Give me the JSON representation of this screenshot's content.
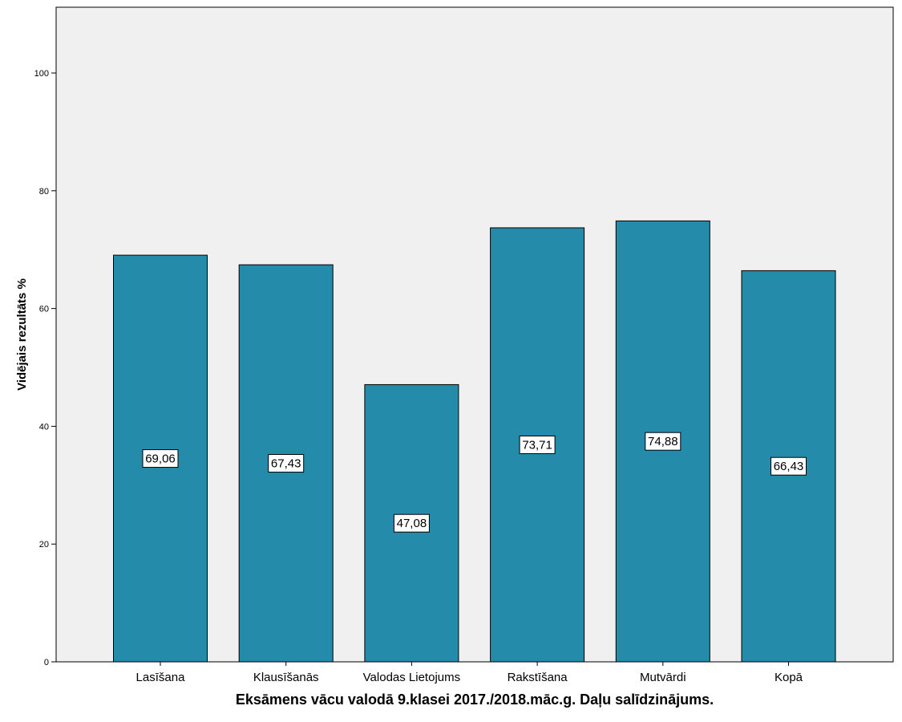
{
  "chart_data": {
    "type": "bar",
    "categories": [
      "Lasīšana",
      "Klausīšanās",
      "Valodas Lietojums",
      "Rakstīšana",
      "Mutvārdi",
      "Kopā"
    ],
    "values": [
      69.06,
      67.43,
      47.08,
      73.71,
      74.88,
      66.43
    ],
    "data_labels": [
      "69,06",
      "67,43",
      "47,08",
      "73,71",
      "74,88",
      "66,43"
    ],
    "title": "",
    "xlabel": "Eksāmens vācu valodā 9.klasei 2017./2018.māc.g. Daļu salīdzinājums.",
    "ylabel": "Vidējais rezultāts %",
    "ylim": [
      0,
      111
    ],
    "yticks": [
      0,
      20,
      40,
      60,
      80,
      100
    ],
    "grid": false,
    "legend": "none",
    "colors": {
      "bar": "#258bab",
      "plot_background": "#f0f0f0",
      "axis": "#000000"
    }
  }
}
